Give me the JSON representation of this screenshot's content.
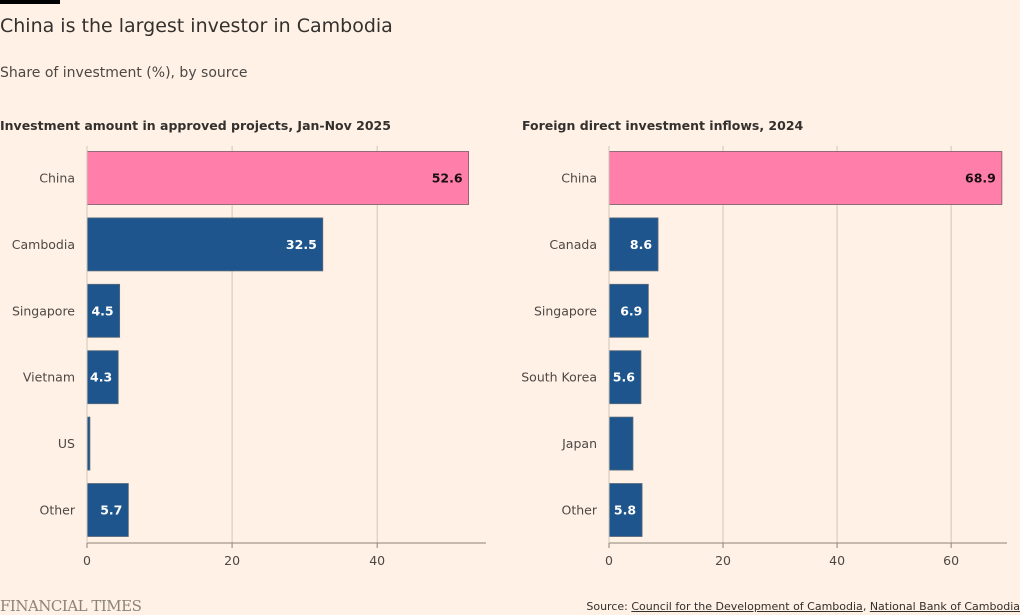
{
  "header": {
    "title": "China is the largest investor in Cambodia",
    "subtitle": "Share of investment (%), by source"
  },
  "colors": {
    "highlight": "#FF7FAA",
    "default": "#1E558C",
    "grid": "#CEC6B9",
    "axis": "#8c8377"
  },
  "chart_data": [
    {
      "type": "bar",
      "orientation": "horizontal",
      "title": "Investment amount in approved projects, Jan-Nov 2025",
      "categories": [
        "China",
        "Cambodia",
        "Singapore",
        "Vietnam",
        "US",
        "Other"
      ],
      "values": [
        52.6,
        32.5,
        4.5,
        4.3,
        0.4,
        5.7
      ],
      "labels": [
        "52.6",
        "32.5",
        "4.5",
        "4.3",
        "",
        "5.7"
      ],
      "highlight": [
        "China"
      ],
      "xlim": [
        0,
        55
      ],
      "xticks": [
        0,
        20,
        40
      ],
      "grid": true
    },
    {
      "type": "bar",
      "orientation": "horizontal",
      "title": "Foreign direct investment inflows, 2024",
      "categories": [
        "China",
        "Canada",
        "Singapore",
        "South Korea",
        "Japan",
        "Other"
      ],
      "values": [
        68.9,
        8.6,
        6.9,
        5.6,
        4.2,
        5.8
      ],
      "labels": [
        "68.9",
        "8.6",
        "6.9",
        "5.6",
        "",
        "5.8"
      ],
      "highlight": [
        "China"
      ],
      "xlim": [
        0,
        69.8
      ],
      "xticks": [
        0,
        20,
        40,
        60
      ],
      "grid": true
    }
  ],
  "footer": {
    "brand": "FINANCIAL TIMES",
    "source_prefix": "Source: ",
    "source_links": [
      "Council for the Development of Cambodia",
      "National Bank of Cambodia"
    ],
    "separator": ", "
  }
}
